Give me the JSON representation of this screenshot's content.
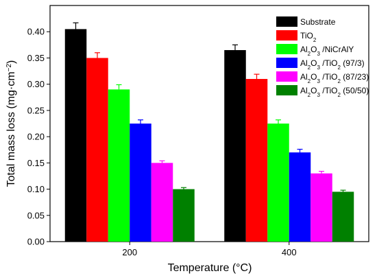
{
  "chart_data": {
    "type": "bar",
    "xlabel": "Temperature (°C)",
    "ylabel": "Total mass loss (mg·cm⁻²)",
    "ylabel_parts": [
      "Total mass loss (mg·cm",
      "−2",
      ")"
    ],
    "ylim": [
      0.0,
      0.45
    ],
    "yticks": [
      "0.00",
      "0.05",
      "0.10",
      "0.15",
      "0.20",
      "0.25",
      "0.30",
      "0.35",
      "0.40"
    ],
    "categories": [
      "200",
      "400"
    ],
    "grid": false,
    "legend_position": "top-right",
    "series": [
      {
        "name": "Substrate",
        "name_parts": [
          [
            "Substrate",
            ""
          ]
        ],
        "color": "#000000",
        "values": [
          0.405,
          0.365
        ],
        "errors": [
          0.012,
          0.01
        ]
      },
      {
        "name": "TiO2",
        "name_parts": [
          [
            "TiO",
            ""
          ],
          [
            "2",
            "sub"
          ]
        ],
        "color": "#ff0000",
        "values": [
          0.35,
          0.31
        ],
        "errors": [
          0.01,
          0.009
        ]
      },
      {
        "name": "Al2O3 /NiCrAlY",
        "name_parts": [
          [
            "Al",
            ""
          ],
          [
            "2",
            "sub"
          ],
          [
            "O",
            ""
          ],
          [
            "3",
            "sub"
          ],
          [
            " /NiCrAlY",
            ""
          ]
        ],
        "color": "#00ff00",
        "values": [
          0.29,
          0.225
        ],
        "errors": [
          0.009,
          0.007
        ]
      },
      {
        "name": "Al2O3 /TiO2 (97/3)",
        "name_parts": [
          [
            "Al",
            ""
          ],
          [
            "2",
            "sub"
          ],
          [
            "O",
            ""
          ],
          [
            "3",
            "sub"
          ],
          [
            " /TiO",
            ""
          ],
          [
            "2",
            "sub"
          ],
          [
            " (97/3)",
            ""
          ]
        ],
        "color": "#0000ff",
        "values": [
          0.225,
          0.17
        ],
        "errors": [
          0.007,
          0.006
        ]
      },
      {
        "name": "Al2O3 /TiO2 (87/23)",
        "name_parts": [
          [
            "Al",
            ""
          ],
          [
            "2",
            "sub"
          ],
          [
            "O",
            ""
          ],
          [
            "3",
            "sub"
          ],
          [
            " /TiO",
            ""
          ],
          [
            "2",
            "sub"
          ],
          [
            " (87/23)",
            ""
          ]
        ],
        "color": "#ff00ff",
        "values": [
          0.15,
          0.13
        ],
        "errors": [
          0.004,
          0.004
        ]
      },
      {
        "name": "Al2O3 /TiO2 (50/50)",
        "name_parts": [
          [
            "Al",
            ""
          ],
          [
            "2",
            "sub"
          ],
          [
            "O",
            ""
          ],
          [
            "3",
            "sub"
          ],
          [
            " /TiO",
            ""
          ],
          [
            "2",
            "sub"
          ],
          [
            " (50/50)",
            ""
          ]
        ],
        "color": "#008000",
        "values": [
          0.1,
          0.095
        ],
        "errors": [
          0.003,
          0.003
        ]
      }
    ]
  }
}
